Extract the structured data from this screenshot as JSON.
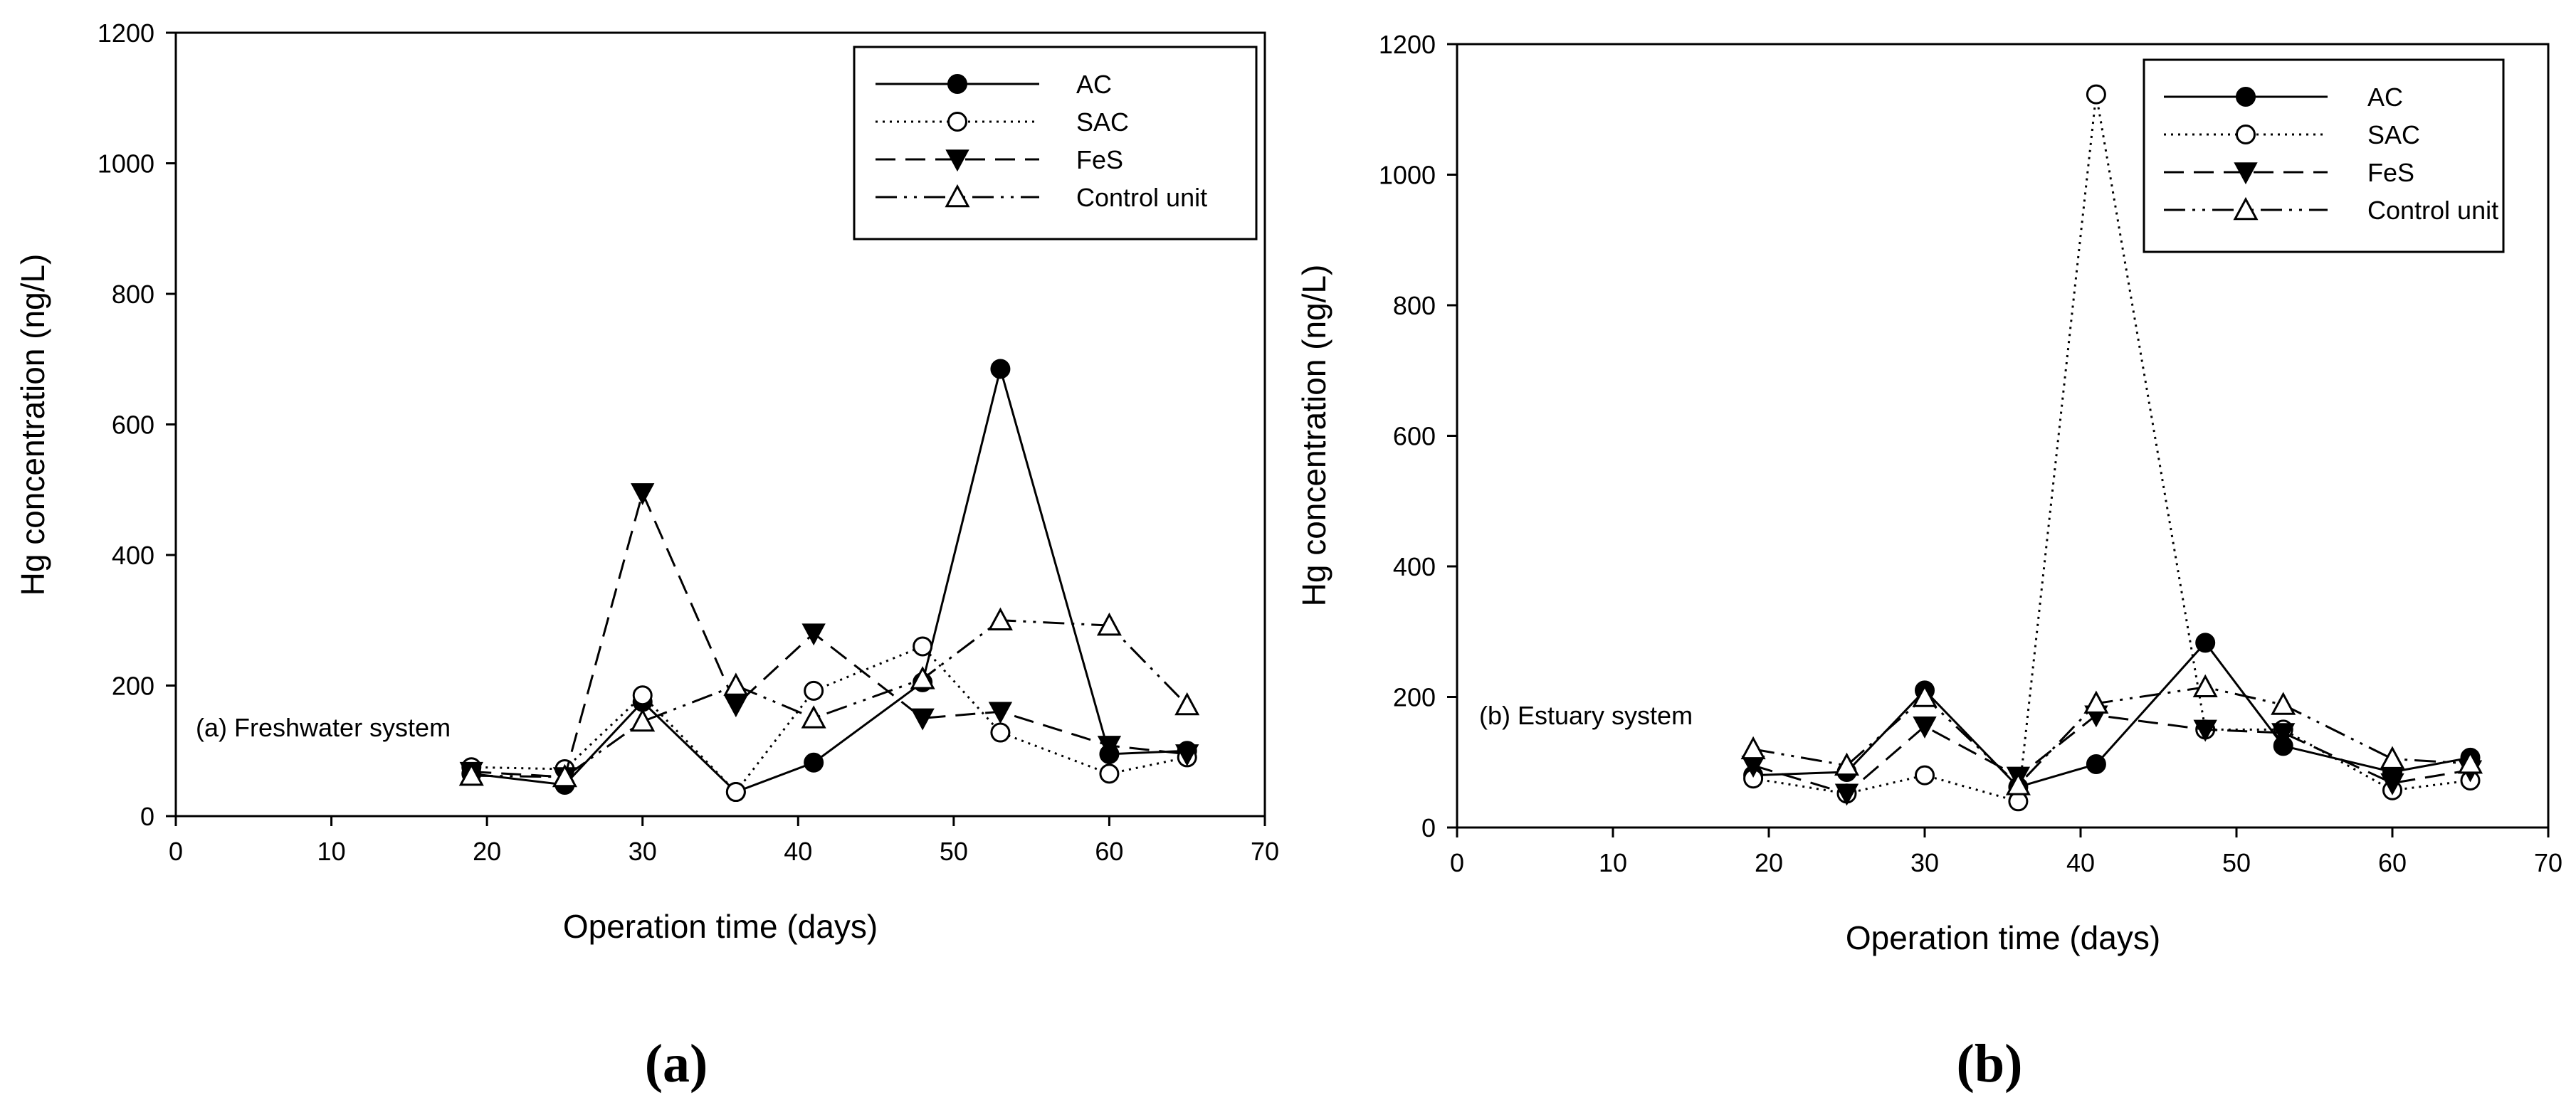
{
  "chart_data": [
    {
      "type": "line",
      "panel_label": "(a)",
      "annotation": "(a) Freshwater system",
      "xlabel": "Operation time (days)",
      "ylabel": "Hg concentration (ng/L)",
      "xlim": [
        0,
        70
      ],
      "ylim": [
        0,
        1200
      ],
      "xticks": [
        0,
        10,
        20,
        30,
        40,
        50,
        60,
        70
      ],
      "yticks": [
        0,
        200,
        400,
        600,
        800,
        1000,
        1200
      ],
      "legend_position": "top-right",
      "series": [
        {
          "name": "AC",
          "marker": "filled-circle",
          "line": "solid",
          "x": [
            19,
            25,
            30,
            36,
            41,
            48,
            53,
            60,
            65
          ],
          "y": [
            65,
            48,
            175,
            37,
            82,
            205,
            685,
            95,
            100
          ]
        },
        {
          "name": "SAC",
          "marker": "open-circle",
          "line": "dotted",
          "x": [
            19,
            25,
            30,
            36,
            41,
            48,
            53,
            60,
            65
          ],
          "y": [
            75,
            72,
            185,
            37,
            192,
            260,
            128,
            65,
            90
          ]
        },
        {
          "name": "FeS",
          "marker": "filled-triangle-down",
          "line": "dashed",
          "x": [
            19,
            25,
            30,
            36,
            41,
            48,
            53,
            60,
            65
          ],
          "y": [
            68,
            60,
            495,
            170,
            280,
            150,
            160,
            108,
            95
          ]
        },
        {
          "name": "Control unit",
          "marker": "open-triangle-up",
          "line": "dash-dot-dot",
          "x": [
            19,
            25,
            30,
            36,
            41,
            48,
            53,
            60,
            65
          ],
          "y": [
            62,
            60,
            145,
            200,
            150,
            210,
            300,
            292,
            170
          ]
        }
      ]
    },
    {
      "type": "line",
      "panel_label": "(b)",
      "annotation": "(b) Estuary system",
      "xlabel": "Operation time (days)",
      "ylabel": "Hg concentration (ng/L)",
      "xlim": [
        0,
        70
      ],
      "ylim": [
        0,
        1200
      ],
      "xticks": [
        0,
        10,
        20,
        30,
        40,
        50,
        60,
        70
      ],
      "yticks": [
        0,
        200,
        400,
        600,
        800,
        1000,
        1200
      ],
      "legend_position": "top-right",
      "series": [
        {
          "name": "AC",
          "marker": "filled-circle",
          "line": "solid",
          "x": [
            19,
            25,
            30,
            36,
            41,
            48,
            53,
            60,
            65
          ],
          "y": [
            80,
            85,
            210,
            62,
            97,
            283,
            125,
            85,
            107
          ]
        },
        {
          "name": "SAC",
          "marker": "open-circle",
          "line": "dotted",
          "x": [
            19,
            25,
            30,
            36,
            41,
            48,
            53,
            60,
            65
          ],
          "y": [
            75,
            52,
            80,
            40,
            1123,
            150,
            150,
            57,
            72
          ]
        },
        {
          "name": "FeS",
          "marker": "filled-triangle-down",
          "line": "dashed",
          "x": [
            19,
            25,
            30,
            36,
            41,
            48,
            53,
            60,
            65
          ],
          "y": [
            95,
            52,
            155,
            78,
            172,
            150,
            145,
            68,
            88
          ]
        },
        {
          "name": "Control unit",
          "marker": "open-triangle-up",
          "line": "dash-dot-dot",
          "x": [
            19,
            25,
            30,
            36,
            41,
            48,
            53,
            60,
            65
          ],
          "y": [
            120,
            95,
            200,
            65,
            190,
            215,
            188,
            105,
            98
          ]
        }
      ]
    }
  ]
}
